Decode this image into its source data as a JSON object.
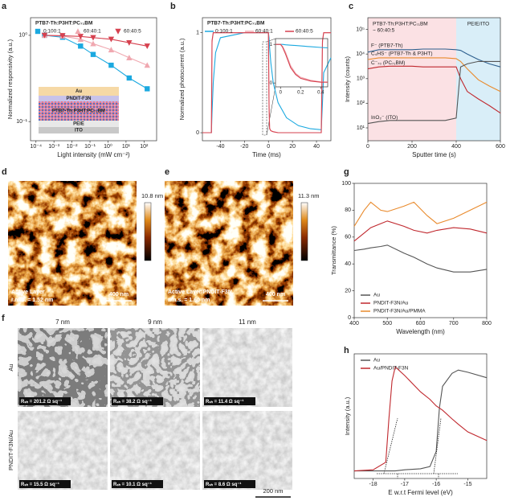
{
  "panel_letters": [
    "a",
    "b",
    "c",
    "d",
    "e",
    "f",
    "g",
    "h"
  ],
  "chart_data": [
    {
      "type": "line",
      "panel": "a",
      "legend_title": "PTB7-Th:P3HT:PC₇₁BM",
      "legend": "top",
      "xlabel": "Light intensity (mW cm⁻²)",
      "ylabel": "Normalized responsivity (a.u.)",
      "xscale": "log",
      "yscale": "log",
      "xlim": [
        5e-05,
        500
      ],
      "ylim": [
        0.06,
        1.6
      ],
      "xticks": [
        {
          "value": 0.0001,
          "label": "10⁻⁴"
        },
        {
          "value": 0.001,
          "label": "10⁻³"
        },
        {
          "value": 0.01,
          "label": "10⁻²"
        },
        {
          "value": 0.1,
          "label": "10⁻¹"
        },
        {
          "value": 1,
          "label": "10⁰"
        },
        {
          "value": 10,
          "label": "10¹"
        },
        {
          "value": 100,
          "label": "10²"
        }
      ],
      "yticks": [
        {
          "value": 0.1,
          "label": "10⁻¹"
        },
        {
          "value": 1,
          "label": "10⁰"
        }
      ],
      "x": [
        0.0003,
        0.003,
        0.03,
        0.15,
        1.5,
        15,
        150
      ],
      "series": [
        {
          "name": "0:100:1",
          "color": "#1ba9e0",
          "marker": "square",
          "values": [
            1,
            0.95,
            0.75,
            0.6,
            0.45,
            0.32,
            0.24
          ]
        },
        {
          "name": "60:40:1",
          "color": "#f0a8b0",
          "marker": "triangle",
          "values": [
            1,
            0.98,
            0.9,
            0.8,
            0.68,
            0.55,
            0.45
          ]
        },
        {
          "name": "60:40:5",
          "color": "#d6414f",
          "marker": "triangle-down",
          "values": [
            1,
            0.99,
            0.97,
            0.94,
            0.9,
            0.82,
            0.75
          ]
        }
      ],
      "inset_layers": [
        "Au",
        "PNDIT-F3N",
        "PTB7-Th:P3HT:PC₇₁BM",
        "PEIE",
        "ITO"
      ]
    },
    {
      "type": "line",
      "panel": "b",
      "legend_title": "PTB7-Th:P3HT:PC₇₁BM",
      "legend": "top",
      "xlabel": "Time (ms)",
      "ylabel": "Normalized photocurrent (a.u.)",
      "xlim": [
        -55,
        52
      ],
      "ylim": [
        -0.08,
        1.15
      ],
      "xticks": [
        -40,
        -20,
        0,
        20,
        40
      ],
      "yticks": [
        0,
        1
      ],
      "x": [
        -55,
        -47.5,
        -47,
        -46,
        -44,
        -40,
        -20,
        -0.5,
        0,
        0.5,
        1,
        2,
        4,
        8,
        15,
        25,
        35,
        44,
        45,
        46,
        52
      ],
      "series": [
        {
          "name": "0:100:1",
          "color": "#1ba9e0",
          "values": [
            0,
            0,
            0.2,
            0.5,
            0.8,
            0.95,
            1,
            1,
            1,
            0.95,
            0.85,
            0.7,
            0.5,
            0.3,
            0.15,
            0.07,
            0.04,
            0.03,
            0.3,
            0.6,
            0.75
          ]
        },
        {
          "name": "60:40:1",
          "color": "#f0a8b0",
          "values": [
            0,
            0,
            0.9,
            1,
            1,
            1,
            1,
            1,
            1,
            0.3,
            0.05,
            0.02,
            0.01,
            0,
            0,
            0,
            0,
            0,
            0.9,
            1,
            1
          ]
        },
        {
          "name": "60:40:5",
          "color": "#d6414f",
          "values": [
            0,
            0,
            0.92,
            1,
            1,
            1,
            1,
            1,
            1,
            0.25,
            0.04,
            0.02,
            0.01,
            0,
            0,
            0,
            0,
            0,
            0.92,
            1,
            1
          ]
        }
      ]
    },
    {
      "type": "line",
      "panel": "b-inset",
      "xlim": [
        -0.05,
        0.47
      ],
      "ylim": [
        -0.1,
        1.15
      ],
      "xticks": [
        0,
        0.2,
        0.4
      ],
      "yticks": [
        0,
        1
      ],
      "x": [
        -0.05,
        0,
        0.02,
        0.05,
        0.1,
        0.15,
        0.2,
        0.3,
        0.4,
        0.47
      ],
      "series": [
        {
          "color": "#1ba9e0",
          "values": [
            1,
            1,
            1,
            0.99,
            0.98,
            0.97,
            0.96,
            0.94,
            0.92,
            0.91
          ]
        },
        {
          "color": "#f0a8b0",
          "values": [
            1,
            1,
            0.95,
            0.8,
            0.45,
            0.25,
            0.15,
            0.07,
            0.03,
            0.02
          ]
        },
        {
          "color": "#d6414f",
          "values": [
            1,
            1,
            0.93,
            0.75,
            0.4,
            0.22,
            0.12,
            0.05,
            0.02,
            0.02
          ]
        }
      ]
    },
    {
      "type": "line",
      "panel": "c",
      "direct_labels": true,
      "xlabel": "Sputter time (s)",
      "ylabel": "Intensity (counts)",
      "yscale": "log",
      "xlim": [
        0,
        600
      ],
      "ylim": [
        3,
        300000
      ],
      "xticks": [
        0,
        200,
        400,
        600
      ],
      "yticks": [
        {
          "value": 10,
          "label": "10¹"
        },
        {
          "value": 100,
          "label": "10²"
        },
        {
          "value": 1000,
          "label": "10³"
        },
        {
          "value": 10000,
          "label": "10⁴"
        },
        {
          "value": 100000,
          "label": "10⁵"
        }
      ],
      "regions": [
        {
          "lines": [
            "PTB7-Th:P3HT:PC₇₁BM",
            "~ 60:40:5"
          ],
          "from": 0,
          "to": 400,
          "color": "#fbe1e4"
        },
        {
          "lines": [
            "PEIE/ITO"
          ],
          "from": 400,
          "to": 600,
          "color": "#d9eef8"
        }
      ],
      "x": [
        0,
        50,
        100,
        150,
        200,
        250,
        300,
        350,
        400,
        420,
        450,
        500,
        550,
        600
      ],
      "series": [
        {
          "name": "F⁻ (PTB7-Th)",
          "color": "#2d5f8e",
          "values": [
            12000,
            15000,
            15000,
            15000,
            15000,
            16000,
            16000,
            16000,
            15000,
            14000,
            10000,
            6000,
            4000,
            3000
          ]
        },
        {
          "name": "C₄HS⁻ (PTB7-Th & P3HT)",
          "color": "#e98a2c",
          "values": [
            6000,
            7000,
            7000,
            7000,
            7000,
            7000,
            7000,
            7000,
            6500,
            5000,
            2500,
            900,
            500,
            300
          ]
        },
        {
          "name": "C⁻₇₀ (PC₇₁BM)",
          "color": "#c0282e",
          "values": [
            2500,
            3000,
            3200,
            3200,
            3200,
            3000,
            3000,
            3000,
            3000,
            1000,
            300,
            150,
            80,
            40
          ]
        },
        {
          "name": "InO₂⁻ (ITO)",
          "color": "#555555",
          "values": [
            15,
            18,
            20,
            20,
            20,
            20,
            20,
            20,
            25,
            3000,
            4000,
            5000,
            5000,
            5000
          ]
        }
      ]
    },
    {
      "type": "line",
      "panel": "g",
      "legend": "lower left",
      "xlabel": "Wavelength (nm)",
      "ylabel": "Transmittance (%)",
      "xlim": [
        400,
        800
      ],
      "ylim": [
        0,
        100
      ],
      "xticks": [
        400,
        500,
        600,
        700,
        800
      ],
      "yticks": [
        0,
        20,
        40,
        60,
        80,
        100
      ],
      "x": [
        400,
        430,
        450,
        480,
        500,
        550,
        580,
        620,
        650,
        700,
        750,
        800
      ],
      "series": [
        {
          "name": "Au",
          "color": "#555555",
          "values": [
            50,
            51,
            52,
            53,
            54,
            48,
            45,
            40,
            37,
            34,
            34,
            36
          ]
        },
        {
          "name": "PNDIT-F3N/Au",
          "color": "#c0282e",
          "values": [
            57,
            63,
            67,
            70,
            72,
            68,
            65,
            63,
            65,
            67,
            66,
            63
          ]
        },
        {
          "name": "PNDIT-F3N/Au/PMMA",
          "color": "#e98a2c",
          "values": [
            68,
            80,
            86,
            80,
            79,
            83,
            86,
            76,
            70,
            74,
            80,
            86
          ]
        }
      ]
    },
    {
      "type": "line",
      "panel": "h",
      "legend": "upper left",
      "xlabel": "E w.r.t Fermi level (eV)",
      "ylabel": "Intensity (a.u.)",
      "xlim": [
        -18.6,
        -14.4
      ],
      "ylim": [
        -0.05,
        1.1
      ],
      "xticks": [
        -18,
        -17,
        -16,
        -15
      ],
      "x": [
        -18.6,
        -18,
        -17.6,
        -17.5,
        -17.4,
        -17.3,
        -17,
        -16.5,
        -16.2,
        -16,
        -15.9,
        -15.8,
        -15.5,
        -15.3,
        -15,
        -14.4
      ],
      "series": [
        {
          "name": "Au",
          "color": "#555555",
          "values": [
            0.02,
            0.02,
            0.02,
            0.02,
            0.02,
            0.02,
            0.03,
            0.04,
            0.06,
            0.2,
            0.6,
            0.8,
            0.92,
            0.95,
            0.93,
            0.88
          ]
        },
        {
          "name": "Au/PNDIT-F3N",
          "color": "#c0282e",
          "values": [
            0.02,
            0.03,
            0.1,
            0.5,
            0.85,
            0.98,
            0.9,
            0.75,
            0.68,
            0.62,
            0.6,
            0.58,
            0.5,
            0.45,
            0.38,
            0.3
          ]
        }
      ]
    }
  ],
  "afm": [
    {
      "scale_max": "10.8 nm",
      "label": "Active Layer",
      "rms": "r.m.s. = 1.52 nm",
      "scale_bar": "400 nm"
    },
    {
      "scale_max": "11.3 nm",
      "label": "Active Layer/PNDIT-F3N",
      "rms": "r.m.s. = 1.60 nm",
      "scale_bar": "400 nm"
    }
  ],
  "sem": {
    "columns": [
      "7 nm",
      "9 nm",
      "11 nm"
    ],
    "scale_bar": "200 nm",
    "rows": [
      {
        "label": "Au",
        "sheet_resistance": [
          "Rₛₕ = 201.2 Ω sq⁻¹",
          "Rₛₕ = 38.2 Ω sq⁻¹",
          "Rₛₕ = 11.4 Ω sq⁻¹"
        ]
      },
      {
        "label": "PNDIT-F3N/Au",
        "sheet_resistance": [
          "Rₛₕ = 15.5 Ω sq⁻¹",
          "Rₛₕ = 10.1 Ω sq⁻¹",
          "Rₛₕ = 8.6 Ω sq⁻¹"
        ]
      }
    ]
  }
}
